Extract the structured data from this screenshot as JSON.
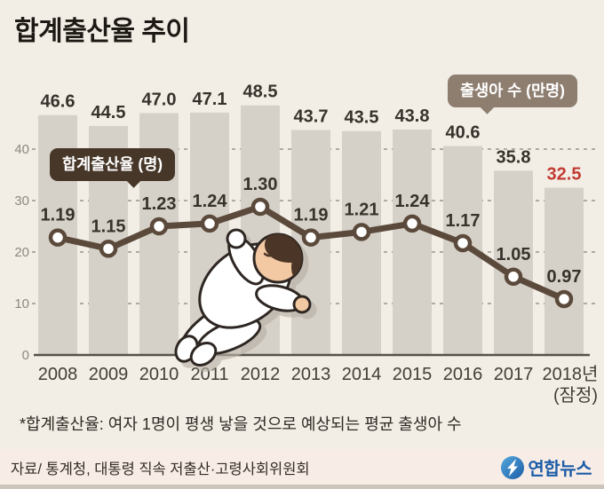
{
  "title": "합계출산율 추이",
  "legend": {
    "fertility_label": "합계출산율 (명)",
    "births_label": "출생아 수 (만명)"
  },
  "chart_data": {
    "type": "bar+line",
    "categories": [
      "2008",
      "2009",
      "2010",
      "2011",
      "2012",
      "2013",
      "2014",
      "2015",
      "2016",
      "2017",
      "2018년"
    ],
    "x_note": "(잠정)",
    "series": [
      {
        "name": "출생아 수 (만명)",
        "type": "bar",
        "values": [
          46.6,
          44.5,
          47.0,
          47.1,
          48.5,
          43.7,
          43.5,
          43.8,
          40.6,
          35.8,
          32.5
        ]
      },
      {
        "name": "합계출산율 (명)",
        "type": "line",
        "values": [
          1.19,
          1.15,
          1.23,
          1.24,
          1.3,
          1.19,
          1.21,
          1.24,
          1.17,
          1.05,
          0.97
        ]
      }
    ],
    "y_ticks": [
      0,
      10,
      20,
      30,
      40
    ],
    "ylim": [
      0,
      50
    ],
    "grid": "dashed-horizontal",
    "colors": {
      "bar": "#d6d1c8",
      "line": "#5b4a3b",
      "highlight_last_bar_label": "#c23b32",
      "grid": "#a8a095"
    }
  },
  "footnote": "*합계출산율: 여자 1명이 평생 낳을 것으로 예상되는 평균 출생아 수",
  "footer": {
    "source": "자료/ 통계청, 대통령 직속 저출산·고령사회위원회",
    "logo_text": "연합뉴스",
    "logo_icon": "yonhap-lightning-icon"
  }
}
